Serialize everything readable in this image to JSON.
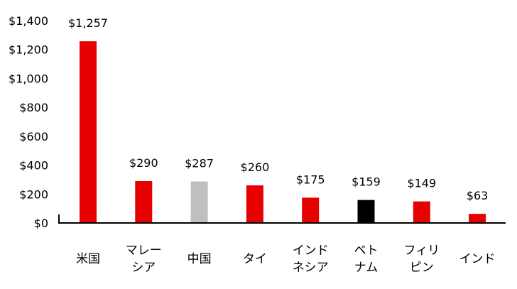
{
  "chart_data": {
    "type": "bar",
    "title": "",
    "xlabel": "",
    "ylabel": "",
    "ylim": [
      0,
      1400
    ],
    "yticks": [
      0,
      200,
      400,
      600,
      800,
      1000,
      1200,
      1400
    ],
    "ytick_labels": [
      "$0",
      "$200",
      "$400",
      "$600",
      "$800",
      "$1,000",
      "$1,200",
      "$1,400"
    ],
    "grid": false,
    "categories": [
      [
        "米国"
      ],
      [
        "マレー",
        "シア"
      ],
      [
        "中国"
      ],
      [
        "タイ"
      ],
      [
        "インド",
        "ネシア"
      ],
      [
        "ベト",
        "ナム"
      ],
      [
        "フィリ",
        "ピン"
      ],
      [
        "インド"
      ]
    ],
    "values": [
      1257,
      290,
      287,
      260,
      175,
      159,
      149,
      63
    ],
    "data_labels": [
      "$1,257",
      "$290",
      "$287",
      "$260",
      "$175",
      "$159",
      "$149",
      "$63"
    ],
    "colors": [
      "#e60000",
      "#e60000",
      "#bfbfbf",
      "#e60000",
      "#e60000",
      "#000000",
      "#e60000",
      "#e60000"
    ]
  }
}
